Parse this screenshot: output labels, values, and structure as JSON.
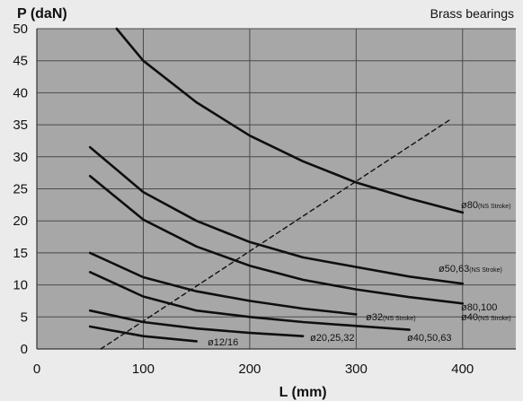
{
  "chart_data": {
    "type": "line",
    "title": "Brass bearings",
    "xlabel": "L (mm)",
    "ylabel": "P (daN)",
    "xlim": [
      0,
      450
    ],
    "ylim": [
      0,
      50
    ],
    "xticks": [
      0,
      100,
      200,
      300,
      400
    ],
    "yticks": [
      0,
      5,
      10,
      15,
      20,
      25,
      30,
      35,
      40,
      45,
      50
    ],
    "grid": true,
    "series": [
      {
        "name": "ø80",
        "label_main": "ø80",
        "label_sub": "(NS Stroke)",
        "style": "solid",
        "points": [
          [
            75,
            50
          ],
          [
            100,
            45
          ],
          [
            150,
            38.5
          ],
          [
            200,
            33.3
          ],
          [
            250,
            29.3
          ],
          [
            300,
            26
          ],
          [
            350,
            23.5
          ],
          [
            400,
            21.3
          ]
        ]
      },
      {
        "name": "ø50,63",
        "label_main": "ø50,63",
        "label_sub": "(NS Stroke)",
        "style": "solid",
        "points": [
          [
            50,
            31.5
          ],
          [
            100,
            24.5
          ],
          [
            150,
            20
          ],
          [
            200,
            16.7
          ],
          [
            250,
            14.3
          ],
          [
            300,
            12.8
          ],
          [
            350,
            11.3
          ],
          [
            400,
            10.2
          ]
        ]
      },
      {
        "name": "ø80,100 / ø40",
        "label_main": "ø80,100",
        "label_main2": "ø40",
        "label_sub": "(NS Stroke)",
        "style": "solid",
        "points": [
          [
            50,
            27
          ],
          [
            100,
            20.2
          ],
          [
            150,
            16
          ],
          [
            200,
            13
          ],
          [
            250,
            10.8
          ],
          [
            300,
            9.3
          ],
          [
            350,
            8.1
          ],
          [
            400,
            7.1
          ]
        ]
      },
      {
        "name": "ø32",
        "label_main": "ø32",
        "label_sub": "(NS Stroke)",
        "style": "solid",
        "points": [
          [
            50,
            15
          ],
          [
            100,
            11.2
          ],
          [
            150,
            9
          ],
          [
            200,
            7.5
          ],
          [
            250,
            6.3
          ],
          [
            300,
            5.4
          ]
        ]
      },
      {
        "name": "ø40,50,63",
        "label_main": "ø40,50,63",
        "label_sub": "",
        "style": "solid",
        "points": [
          [
            50,
            12
          ],
          [
            100,
            8.2
          ],
          [
            150,
            6
          ],
          [
            200,
            5
          ],
          [
            250,
            4.2
          ],
          [
            300,
            3.6
          ],
          [
            350,
            3
          ]
        ]
      },
      {
        "name": "ø20,25,32",
        "label_main": "ø20,25,32",
        "label_sub": "",
        "style": "solid",
        "points": [
          [
            50,
            6
          ],
          [
            100,
            4.2
          ],
          [
            150,
            3.2
          ],
          [
            200,
            2.5
          ],
          [
            250,
            2
          ]
        ]
      },
      {
        "name": "ø12/16",
        "label_main": "ø12/16",
        "label_sub": "",
        "style": "solid",
        "points": [
          [
            50,
            3.5
          ],
          [
            100,
            2
          ],
          [
            150,
            1.2
          ]
        ]
      },
      {
        "name": "limit",
        "label_main": "",
        "label_sub": "",
        "style": "dashed",
        "points": [
          [
            60,
            0
          ],
          [
            390,
            36
          ]
        ]
      }
    ]
  }
}
